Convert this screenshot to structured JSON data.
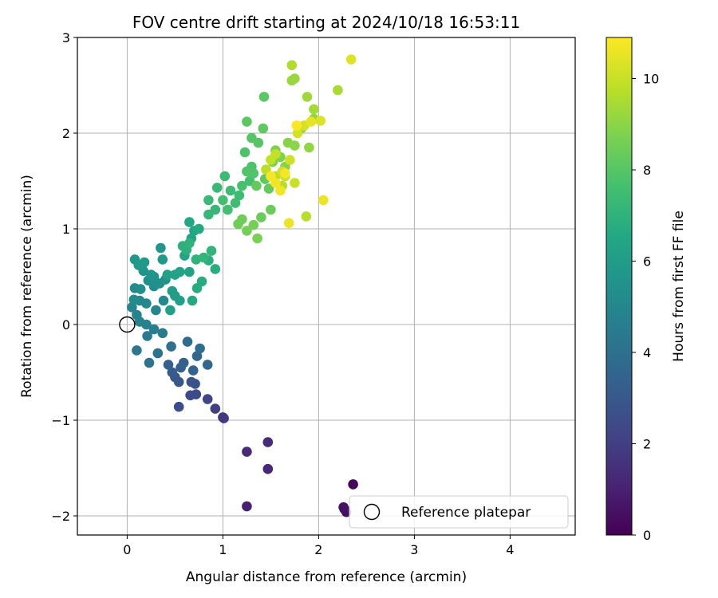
{
  "chart_data": {
    "type": "scatter",
    "title": "FOV centre drift starting at 2024/10/18 16:53:11",
    "xlabel": "Angular distance from reference (arcmin)",
    "ylabel": "Rotation from reference (arcmin)",
    "xlim": [
      -0.52,
      4.68
    ],
    "ylim": [
      -2.2,
      3.0
    ],
    "xticks": [
      0,
      1,
      2,
      3,
      4
    ],
    "xtick_labels": [
      "0",
      "1",
      "2",
      "3",
      "4"
    ],
    "yticks": [
      -2,
      -1,
      0,
      1,
      2,
      3
    ],
    "ytick_labels": [
      "−2",
      "−1",
      "0",
      "1",
      "2",
      "3"
    ],
    "grid": true,
    "legend": {
      "placement": "lower-right",
      "entries": [
        "Reference platepar"
      ]
    },
    "reference_point": {
      "x": 0,
      "y": 0,
      "marker": "open-circle"
    },
    "colorbar": {
      "label": "Hours from first FF file",
      "colormap": "viridis",
      "range": [
        0,
        10.9
      ],
      "ticks": [
        0,
        2,
        4,
        6,
        8,
        10
      ],
      "tick_labels": [
        "0",
        "2",
        "4",
        "6",
        "8",
        "10"
      ]
    },
    "points": [
      [
        2.36,
        -1.67,
        0.2
      ],
      [
        2.27,
        -1.93,
        0.3
      ],
      [
        2.29,
        -1.96,
        0.4
      ],
      [
        2.26,
        -1.91,
        0.5
      ],
      [
        1.25,
        -1.9,
        1.0
      ],
      [
        1.47,
        -1.51,
        1.2
      ],
      [
        1.25,
        -1.33,
        1.3
      ],
      [
        1.47,
        -1.23,
        1.4
      ],
      [
        1.0,
        -0.97,
        1.7
      ],
      [
        1.01,
        -0.98,
        1.8
      ],
      [
        0.92,
        -0.88,
        2.0
      ],
      [
        0.84,
        -0.78,
        2.2
      ],
      [
        0.72,
        -0.73,
        2.4
      ],
      [
        0.66,
        -0.74,
        2.5
      ],
      [
        0.54,
        -0.86,
        2.6
      ],
      [
        0.71,
        -0.62,
        2.7
      ],
      [
        0.67,
        -0.6,
        2.8
      ],
      [
        0.54,
        -0.6,
        2.9
      ],
      [
        0.5,
        -0.55,
        3.0
      ],
      [
        0.47,
        -0.5,
        3.1
      ],
      [
        0.56,
        -0.45,
        3.2
      ],
      [
        0.43,
        -0.42,
        3.3
      ],
      [
        0.59,
        -0.4,
        3.4
      ],
      [
        0.69,
        -0.48,
        3.5
      ],
      [
        0.73,
        -0.33,
        3.6
      ],
      [
        0.84,
        -0.42,
        3.7
      ],
      [
        0.63,
        -0.18,
        3.8
      ],
      [
        0.76,
        -0.25,
        3.9
      ],
      [
        0.46,
        -0.23,
        4.0
      ],
      [
        0.23,
        -0.4,
        4.1
      ],
      [
        0.32,
        -0.3,
        4.2
      ],
      [
        0.1,
        -0.27,
        4.3
      ],
      [
        0.21,
        -0.12,
        4.4
      ],
      [
        0.37,
        -0.09,
        4.5
      ],
      [
        0.28,
        -0.05,
        4.6
      ],
      [
        0.2,
        0.0,
        4.7
      ],
      [
        0.13,
        0.03,
        4.8
      ],
      [
        0.1,
        0.1,
        4.8
      ],
      [
        0.05,
        0.18,
        4.9
      ],
      [
        0.3,
        0.15,
        5.0
      ],
      [
        0.13,
        0.25,
        5.0
      ],
      [
        0.38,
        0.25,
        5.1
      ],
      [
        0.2,
        0.22,
        5.1
      ],
      [
        0.07,
        0.26,
        5.2
      ],
      [
        0.08,
        0.38,
        5.2
      ],
      [
        0.14,
        0.37,
        5.3
      ],
      [
        0.28,
        0.4,
        5.3
      ],
      [
        0.34,
        0.43,
        5.4
      ],
      [
        0.22,
        0.46,
        5.4
      ],
      [
        0.28,
        0.5,
        5.5
      ],
      [
        0.4,
        0.47,
        5.5
      ],
      [
        0.17,
        0.56,
        5.6
      ],
      [
        0.25,
        0.52,
        5.6
      ],
      [
        0.35,
        0.8,
        5.7
      ],
      [
        0.08,
        0.68,
        5.8
      ],
      [
        0.18,
        0.65,
        5.8
      ],
      [
        0.12,
        0.62,
        5.9
      ],
      [
        0.37,
        0.68,
        5.9
      ],
      [
        0.47,
        0.35,
        6.0
      ],
      [
        0.5,
        0.3,
        6.0
      ],
      [
        0.55,
        0.25,
        6.1
      ],
      [
        0.45,
        0.15,
        6.1
      ],
      [
        0.42,
        0.52,
        6.2
      ],
      [
        0.5,
        0.52,
        6.2
      ],
      [
        0.55,
        0.55,
        6.3
      ],
      [
        0.65,
        0.55,
        6.3
      ],
      [
        0.6,
        0.72,
        6.4
      ],
      [
        0.67,
        0.9,
        6.4
      ],
      [
        0.65,
        1.07,
        6.5
      ],
      [
        0.7,
        0.98,
        6.5
      ],
      [
        0.75,
        1.0,
        6.6
      ],
      [
        0.68,
        0.25,
        6.6
      ],
      [
        0.73,
        0.38,
        6.7
      ],
      [
        0.78,
        0.45,
        6.7
      ],
      [
        0.92,
        0.58,
        6.8
      ],
      [
        0.85,
        0.67,
        6.8
      ],
      [
        0.62,
        0.78,
        6.9
      ],
      [
        0.58,
        0.82,
        6.9
      ],
      [
        0.65,
        0.85,
        7.0
      ],
      [
        0.72,
        0.68,
        7.0
      ],
      [
        0.8,
        0.7,
        7.1
      ],
      [
        0.88,
        0.77,
        7.1
      ],
      [
        0.85,
        1.15,
        7.2
      ],
      [
        0.92,
        1.2,
        7.2
      ],
      [
        0.85,
        1.3,
        7.3
      ],
      [
        0.94,
        1.43,
        7.3
      ],
      [
        1.02,
        1.55,
        7.4
      ],
      [
        1.08,
        1.4,
        7.4
      ],
      [
        1.13,
        1.27,
        7.5
      ],
      [
        1.17,
        1.35,
        7.5
      ],
      [
        1.05,
        1.2,
        7.6
      ],
      [
        1.0,
        1.3,
        7.6
      ],
      [
        1.2,
        1.45,
        7.7
      ],
      [
        1.28,
        1.5,
        7.7
      ],
      [
        1.3,
        1.65,
        7.8
      ],
      [
        1.23,
        1.8,
        7.8
      ],
      [
        1.25,
        1.6,
        7.9
      ],
      [
        1.32,
        1.58,
        7.9
      ],
      [
        1.37,
        1.9,
        8.0
      ],
      [
        1.3,
        1.95,
        8.0
      ],
      [
        1.43,
        2.38,
        8.1
      ],
      [
        1.25,
        2.12,
        8.1
      ],
      [
        1.42,
        2.05,
        8.2
      ],
      [
        1.44,
        1.52,
        8.2
      ],
      [
        1.35,
        1.45,
        8.3
      ],
      [
        1.48,
        1.42,
        8.3
      ],
      [
        1.5,
        1.2,
        8.4
      ],
      [
        1.4,
        1.12,
        8.4
      ],
      [
        1.2,
        1.1,
        8.5
      ],
      [
        1.16,
        1.05,
        8.5
      ],
      [
        1.32,
        1.04,
        8.6
      ],
      [
        1.25,
        0.98,
        8.6
      ],
      [
        1.36,
        0.9,
        8.7
      ],
      [
        1.52,
        1.7,
        8.7
      ],
      [
        1.55,
        1.82,
        8.8
      ],
      [
        1.6,
        1.75,
        8.8
      ],
      [
        1.65,
        1.65,
        8.9
      ],
      [
        1.68,
        1.9,
        8.9
      ],
      [
        1.75,
        1.87,
        9.0
      ],
      [
        1.82,
        2.05,
        9.0
      ],
      [
        1.95,
        2.15,
        9.1
      ],
      [
        1.9,
        1.85,
        9.1
      ],
      [
        1.72,
        2.55,
        9.2
      ],
      [
        1.75,
        2.57,
        9.2
      ],
      [
        1.88,
        2.38,
        9.3
      ],
      [
        1.95,
        2.25,
        9.4
      ],
      [
        2.2,
        2.45,
        9.5
      ],
      [
        1.72,
        2.71,
        9.6
      ],
      [
        1.87,
        1.13,
        9.7
      ],
      [
        1.62,
        1.45,
        9.7
      ],
      [
        1.55,
        1.55,
        9.8
      ],
      [
        1.45,
        1.62,
        9.8
      ],
      [
        1.5,
        1.72,
        9.9
      ],
      [
        1.55,
        1.78,
        9.9
      ],
      [
        1.65,
        1.55,
        10.0
      ],
      [
        1.75,
        1.48,
        10.0
      ],
      [
        1.62,
        1.6,
        10.1
      ],
      [
        1.7,
        1.72,
        10.1
      ],
      [
        1.78,
        2.0,
        10.2
      ],
      [
        1.85,
        2.08,
        10.2
      ],
      [
        2.02,
        2.13,
        10.3
      ],
      [
        2.34,
        2.77,
        10.4
      ],
      [
        1.92,
        2.12,
        10.5
      ],
      [
        2.05,
        1.3,
        10.6
      ],
      [
        1.69,
        1.06,
        10.6
      ],
      [
        1.6,
        1.4,
        10.7
      ],
      [
        1.55,
        1.48,
        10.7
      ],
      [
        1.5,
        1.55,
        10.8
      ],
      [
        1.65,
        1.58,
        10.8
      ],
      [
        1.77,
        2.08,
        10.9
      ]
    ]
  }
}
